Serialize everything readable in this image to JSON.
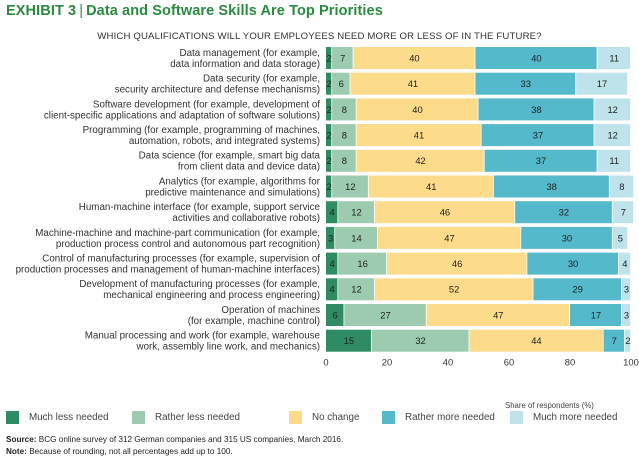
{
  "header": {
    "exhibit": "EXHIBIT 3",
    "separator": "|",
    "title": "Data and Software Skills Are Top Priorities",
    "subtitle": "WHICH QUALIFICATIONS WILL YOUR EMPLOYEES NEED MORE OR LESS OF IN THE FUTURE?"
  },
  "chart_data": {
    "type": "bar",
    "orientation": "horizontal",
    "stacked": true,
    "title": "Data and Software Skills Are Top Priorities",
    "xlabel": "Share of respondents (%)",
    "ylabel": "",
    "xlim": [
      0,
      100
    ],
    "xticks": [
      0,
      20,
      40,
      60,
      80,
      100
    ],
    "grid": false,
    "legend_position": "bottom",
    "categories": [
      [
        "Data management (for example,",
        "data information and data storage)"
      ],
      [
        "Data security (for example,",
        "security architecture and defense mechanisms)"
      ],
      [
        "Software development (for example, development of",
        "client-specific applications and adaptation of software solutions)"
      ],
      [
        "Programming (for example, programming of machines,",
        "automation, robots, and integrated systems)"
      ],
      [
        "Data science (for example, smart big data",
        "from client data and device data)"
      ],
      [
        "Analytics (for example, algorithms for",
        "predictive maintenance and simulations)"
      ],
      [
        "Human-machine interface (for example, support service",
        "activities and collaborative robots)"
      ],
      [
        "Machine-machine and machine-part communication (for example,",
        "production process control and autonomous part recognition)"
      ],
      [
        "Control of manufacturing processes (for example, supervision of",
        "production processes and management of human-machine interfaces)"
      ],
      [
        "Development of manufacturing processes (for example,",
        "mechanical engineering and process engineering)"
      ],
      [
        "Operation of machines",
        "(for example, machine control)"
      ],
      [
        "Manual processing and work (for example, warehouse",
        "work, assembly line work, and mechanics)"
      ]
    ],
    "series": [
      {
        "name": "Much less needed",
        "color": "#2e8b64",
        "values": [
          2,
          2,
          2,
          2,
          2,
          2,
          4,
          3,
          4,
          4,
          6,
          15
        ]
      },
      {
        "name": "Rather less needed",
        "color": "#9ccbb0",
        "values": [
          7,
          6,
          8,
          8,
          8,
          12,
          12,
          14,
          16,
          12,
          27,
          32
        ]
      },
      {
        "name": "No change",
        "color": "#fcdb8a",
        "values": [
          40,
          41,
          40,
          41,
          42,
          41,
          46,
          47,
          46,
          52,
          47,
          44
        ]
      },
      {
        "name": "Rather more needed",
        "color": "#53b9cb",
        "values": [
          40,
          33,
          38,
          37,
          37,
          38,
          32,
          30,
          30,
          29,
          17,
          7
        ]
      },
      {
        "name": "Much more needed",
        "color": "#bfe3ea",
        "values": [
          11,
          17,
          12,
          12,
          11,
          8,
          7,
          5,
          4,
          3,
          3,
          2
        ]
      }
    ]
  },
  "footnotes": {
    "source_label": "Source:",
    "source_text": "BCG online survey of 312 German companies and 315 US companies, March 2016.",
    "note_label": "Note:",
    "note_text": "Because of rounding, not all percentages add up to 100."
  }
}
